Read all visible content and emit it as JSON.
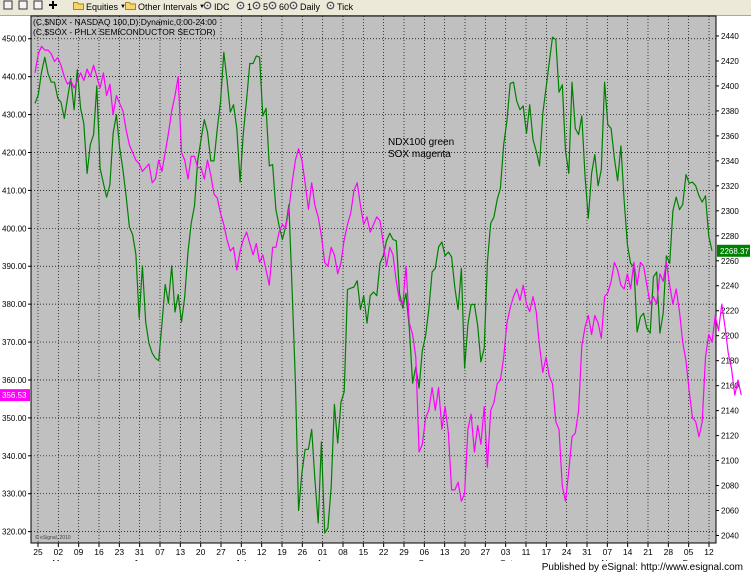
{
  "toolbar": {
    "items": [
      {
        "label": "",
        "icon": "box-icon"
      },
      {
        "label": "",
        "icon": "box-icon"
      },
      {
        "label": "",
        "icon": "box-icon"
      },
      {
        "label": "",
        "icon": "plus-icon"
      },
      {
        "label": "Equities",
        "icon": "folder-icon",
        "dropdown": true
      },
      {
        "label": "Other Intervals",
        "icon": "folder-icon",
        "dropdown": true
      },
      {
        "label": "IDC",
        "icon": "gear-icon"
      },
      {
        "label": "1",
        "icon": "gear-icon"
      },
      {
        "label": "5",
        "icon": "gear-icon"
      },
      {
        "label": "60",
        "icon": "gear-icon"
      },
      {
        "label": "Daily",
        "icon": "gear-icon"
      },
      {
        "label": "Tick",
        "icon": "gear-icon"
      }
    ]
  },
  "footer": {
    "text": "Published by eSignal: http://www.esignal.com"
  },
  "chart_data": {
    "type": "line",
    "header_lines": [
      "(C,$NDX - NASDAQ 100,D) Dynamic,0:00-24:00",
      "(C,$SOX - PHLX SEMICONDUCTOR SECTOR)"
    ],
    "annotation": [
      "NDX100 green",
      "SOX magenta"
    ],
    "watermark": "© eSignal, 2010",
    "left_axis": {
      "range": [
        317,
        456
      ],
      "ticks": [
        450,
        440,
        430,
        420,
        410,
        400,
        390,
        380,
        370,
        360,
        350,
        340,
        330,
        320
      ],
      "tick_labels": [
        "450.00",
        "440.00",
        "430.00",
        "420.00",
        "410.00",
        "400.00",
        "390.00",
        "380.00",
        "370.00",
        "360.00",
        "350.00",
        "340.00",
        "330.00",
        "320.00"
      ],
      "last_value_label": "356.53",
      "last_value_color": "#ff00ff"
    },
    "right_axis": {
      "range": [
        2034,
        2456
      ],
      "ticks": [
        2440,
        2420,
        2400,
        2380,
        2360,
        2340,
        2320,
        2300,
        2280,
        2260,
        2240,
        2220,
        2200,
        2180,
        2160,
        2140,
        2120,
        2100,
        2080,
        2060,
        2040
      ],
      "last_value_label": "2268.37",
      "last_value_color": "#008000"
    },
    "x_tick_labels": [
      "25",
      "02",
      "09",
      "16",
      "23",
      "31",
      "07",
      "13",
      "20",
      "27",
      "05",
      "12",
      "19",
      "26",
      "01",
      "08",
      "15",
      "22",
      "29",
      "06",
      "13",
      "20",
      "27",
      "03",
      "11",
      "17",
      "24",
      "31",
      "07",
      "14",
      "21",
      "28",
      "05",
      "12"
    ],
    "month_labels": [
      "May",
      "Jun",
      "Jul",
      "Aug",
      "Sep",
      "Oct",
      "Nov",
      "Dec"
    ],
    "grid": true,
    "series": [
      {
        "name": "NDX100",
        "color": "#008000",
        "axis": "right",
        "values": [
          2386,
          2393,
          2411,
          2423,
          2410,
          2403,
          2403,
          2390,
          2387,
          2374,
          2390,
          2406,
          2381,
          2413,
          2382,
          2370,
          2330,
          2353,
          2361,
          2400,
          2334,
          2322,
          2311,
          2321,
          2362,
          2377,
          2351,
          2333,
          2312,
          2287,
          2281,
          2265,
          2214,
          2256,
          2211,
          2194,
          2186,
          2182,
          2180,
          2209,
          2241,
          2226,
          2256,
          2219,
          2233,
          2211,
          2231,
          2267,
          2290,
          2304,
          2340,
          2357,
          2373,
          2363,
          2340,
          2340,
          2366,
          2387,
          2427,
          2405,
          2379,
          2385,
          2366,
          2323,
          2362,
          2389,
          2418,
          2418,
          2424,
          2423,
          2376,
          2382,
          2336,
          2337,
          2301,
          2288,
          2277,
          2287,
          2305,
          2237,
          2163,
          2060,
          2090,
          2109,
          2109,
          2125,
          2085,
          2050,
          2115,
          2042,
          2046,
          2079,
          2145,
          2114,
          2147,
          2155,
          2237,
          2238,
          2239,
          2244,
          2221,
          2232,
          2210,
          2232,
          2235,
          2232,
          2258,
          2264,
          2276,
          2282,
          2277,
          2276,
          2234,
          2222,
          2234,
          2206,
          2162,
          2175,
          2158,
          2188,
          2200,
          2221,
          2251,
          2254,
          2271,
          2275,
          2264,
          2267,
          2263,
          2238,
          2221,
          2254,
          2174,
          2209,
          2225,
          2225,
          2208,
          2179,
          2190,
          2259,
          2290,
          2295,
          2309,
          2318,
          2353,
          2372,
          2402,
          2403,
          2388,
          2381,
          2384,
          2362,
          2385,
          2357,
          2348,
          2336,
          2378,
          2398,
          2419,
          2439,
          2437,
          2395,
          2401,
          2348,
          2330,
          2403,
          2366,
          2361,
          2376,
          2327,
          2294,
          2330,
          2345,
          2320,
          2333,
          2403,
          2369,
          2366,
          2342,
          2324,
          2352,
          2309,
          2273,
          2258,
          2255,
          2203,
          2215,
          2218,
          2206,
          2202,
          2247,
          2251,
          2202,
          2218,
          2264,
          2258,
          2300,
          2311,
          2301,
          2305,
          2329,
          2322,
          2323,
          2320,
          2312,
          2307,
          2312,
          2280,
          2268
        ]
      },
      {
        "name": "SOX",
        "color": "#ff00ff",
        "axis": "left",
        "values": [
          441,
          446,
          448,
          447,
          447,
          446,
          444,
          445,
          443,
          440,
          438,
          439,
          437,
          439,
          441,
          439,
          442,
          440,
          443,
          440,
          437,
          441,
          435,
          438,
          430,
          435,
          433,
          431,
          426,
          422,
          420,
          418,
          417,
          415,
          416,
          417,
          412,
          413,
          418,
          415,
          420,
          425,
          431,
          435,
          440,
          420,
          418,
          413,
          419,
          419,
          416,
          416,
          413,
          418,
          414,
          409,
          408,
          404,
          401,
          397,
          394,
          395,
          389,
          394,
          397,
          399,
          396,
          393,
          396,
          391,
          393,
          389,
          385,
          395,
          395,
          399,
          401,
          400,
          405,
          412,
          418,
          421,
          418,
          412,
          405,
          412,
          406,
          403,
          398,
          391,
          390,
          395,
          393,
          388,
          391,
          397,
          401,
          404,
          410,
          412,
          406,
          401,
          403,
          399,
          401,
          403,
          402,
          396,
          390,
          395,
          393,
          386,
          381,
          380,
          390,
          375,
          372,
          366,
          341,
          343,
          350,
          352,
          358,
          352,
          358,
          347,
          353,
          346,
          331,
          331,
          333,
          328,
          330,
          347,
          351,
          341,
          348,
          343,
          353,
          337,
          352,
          354,
          359,
          360,
          366,
          375,
          379,
          382,
          384,
          381,
          385,
          380,
          378,
          382,
          378,
          369,
          362,
          366,
          361,
          359,
          349,
          347,
          332,
          328,
          336,
          345,
          346,
          352,
          369,
          374,
          377,
          372,
          377,
          375,
          371,
          382,
          383,
          386,
          391,
          389,
          385,
          384,
          388,
          384,
          391,
          385,
          391,
          390,
          385,
          380,
          382,
          380,
          388,
          386,
          391,
          385,
          380,
          384,
          378,
          370,
          365,
          357,
          350,
          349,
          345,
          349,
          366,
          372,
          370,
          377,
          373,
          380,
          374,
          367,
          363,
          356,
          360,
          356
        ]
      }
    ]
  }
}
